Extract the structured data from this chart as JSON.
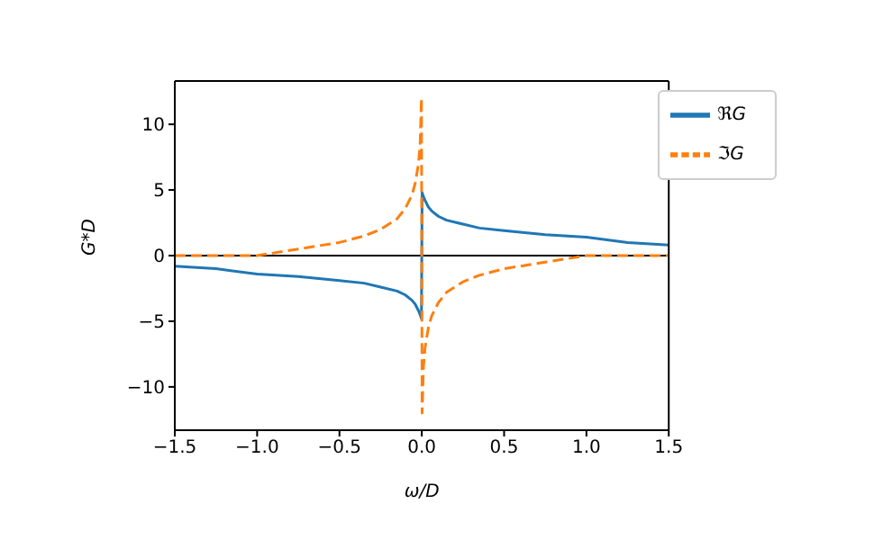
{
  "chart_data": {
    "type": "line",
    "xlabel": "ω/D",
    "ylabel": "G*D",
    "x": [
      -1.5,
      -1.25,
      -1,
      -0.75,
      -0.5,
      -0.35,
      -0.25,
      -0.15,
      -0.1,
      -0.06,
      -0.04,
      -0.02,
      -0.01,
      -0.002,
      0.002,
      0.01,
      0.02,
      0.04,
      0.06,
      0.1,
      0.15,
      0.25,
      0.35,
      0.5,
      0.75,
      1,
      1.25,
      1.5
    ],
    "series": [
      {
        "name": "ℜG",
        "color": "#1f77b4",
        "line_style": "solid",
        "values": [
          -0.8,
          -1.0,
          -1.4,
          -1.6,
          -1.9,
          -2.1,
          -2.4,
          -2.7,
          -3.0,
          -3.4,
          -3.7,
          -4.2,
          -4.5,
          -4.8,
          4.8,
          4.5,
          4.2,
          3.7,
          3.4,
          3.0,
          2.7,
          2.4,
          2.1,
          1.9,
          1.6,
          1.4,
          1.0,
          0.8
        ]
      },
      {
        "name": "ℑG",
        "color": "#ff7f0e",
        "line_style": "dashed",
        "values": [
          0,
          0,
          0,
          0.5,
          1.0,
          1.5,
          2.0,
          2.8,
          3.6,
          4.6,
          5.5,
          7.0,
          8.5,
          12,
          -12,
          -8.5,
          -7.0,
          -5.5,
          -4.6,
          -3.6,
          -2.8,
          -2.0,
          -1.5,
          -1.0,
          -0.5,
          0,
          0,
          0
        ]
      }
    ],
    "xlim": [
      -1.5,
      1.5
    ],
    "ylim": [
      -13.3,
      13.3
    ],
    "xticks": [
      {
        "value": -1.5,
        "label": "−1.5"
      },
      {
        "value": -1,
        "label": "−1.0"
      },
      {
        "value": -0.5,
        "label": "−0.5"
      },
      {
        "value": 0,
        "label": "0.0"
      },
      {
        "value": 0.5,
        "label": "0.5"
      },
      {
        "value": 1,
        "label": "1.0"
      },
      {
        "value": 1.5,
        "label": "1.5"
      }
    ],
    "yticks": [
      {
        "value": -10,
        "label": "−10"
      },
      {
        "value": -5,
        "label": "−5"
      },
      0,
      5,
      10
    ],
    "ref_lines": [
      {
        "axis": "y",
        "value": 0,
        "color": "#000000",
        "line_style": "solid"
      }
    ],
    "grid": false,
    "legend": "top right",
    "marker": "none"
  }
}
